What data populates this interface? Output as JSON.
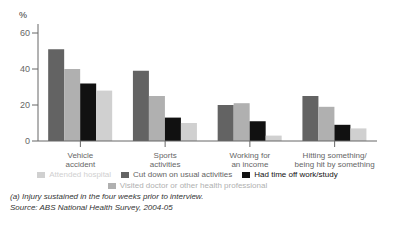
{
  "chart_data": {
    "type": "bar",
    "categories": [
      "Vehicle\naccident",
      "Sports\nactivities",
      "Working for\nan income",
      "Hitting something/\nbeing hit by something"
    ],
    "series": [
      {
        "name": "Cut down on usual activities",
        "color": "#636363",
        "values": [
          51,
          39,
          20,
          25
        ]
      },
      {
        "name": "Visited doctor or other health professional",
        "color": "#b0b0b0",
        "values": [
          40,
          25,
          21,
          19
        ]
      },
      {
        "name": "Had time off work/study",
        "color": "#111111",
        "values": [
          32,
          13,
          11,
          9
        ]
      },
      {
        "name": "Attended hospital",
        "color": "#d0d0d0",
        "values": [
          28,
          10,
          3,
          7
        ]
      }
    ],
    "ylabel": "%",
    "ylim": [
      0,
      65
    ],
    "yticks": [
      0,
      20,
      40,
      60
    ],
    "grid": false,
    "legend": "bottom",
    "annotations": [
      "(a) Injury sustained in the four weeks prior to interview.",
      "Source: ABS National Health Survey, 2004-05"
    ]
  }
}
